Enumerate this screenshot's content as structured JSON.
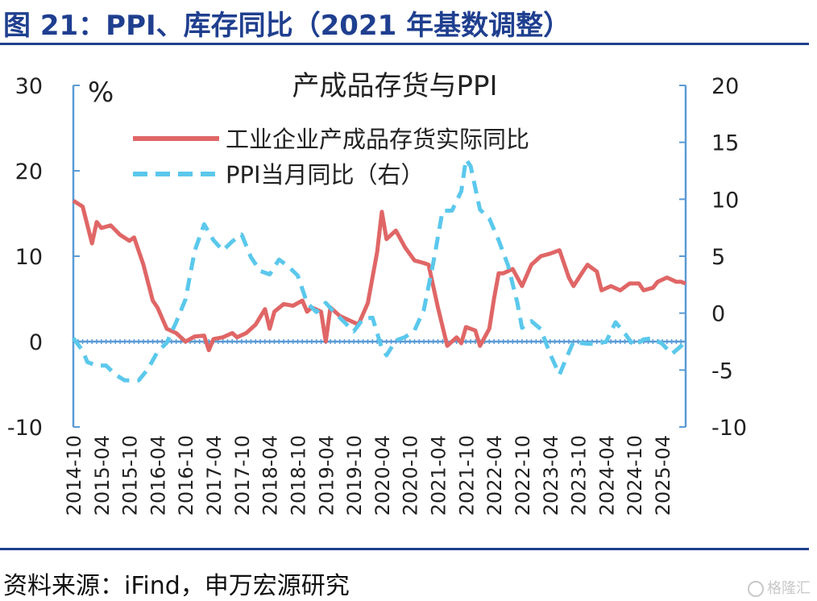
{
  "figure": {
    "title": "图 21：PPI、库存同比（2021 年基数调整）",
    "source": "资料来源：iFind，申万宏源研究",
    "watermark": "格隆汇"
  },
  "colors": {
    "title": "#1f3f8f",
    "inventory_line": "#e06666",
    "ppi_line": "#5bc8ec",
    "axis": "#5b9bd5"
  },
  "chart_data": {
    "type": "line",
    "title": "产成品存货与PPI",
    "left_unit": "%",
    "y_left": {
      "min": -10,
      "max": 30,
      "ticks": [
        -10,
        0,
        10,
        20,
        30
      ]
    },
    "y_right": {
      "min": -10,
      "max": 20,
      "ticks": [
        -10,
        -5,
        0,
        5,
        10,
        15,
        20
      ]
    },
    "x_tick_labels": [
      "2014-10",
      "2015-04",
      "2015-10",
      "2016-04",
      "2016-10",
      "2017-04",
      "2017-10",
      "2018-04",
      "2018-10",
      "2019-04",
      "2019-10",
      "2020-04",
      "2020-10",
      "2021-04",
      "2021-10",
      "2022-04",
      "2022-10",
      "2023-04",
      "2023-10",
      "2024-04",
      "2024-10",
      "2025-04"
    ],
    "legend": {
      "placement": "top-center"
    },
    "series": [
      {
        "name": "工业企业产成品存货实际同比",
        "axis": "left",
        "style": "solid",
        "points": [
          [
            "2014-10",
            16.5
          ],
          [
            "2014-12",
            15.8
          ],
          [
            "2015-02",
            11.5
          ],
          [
            "2015-03",
            14
          ],
          [
            "2015-04",
            13.3
          ],
          [
            "2015-06",
            13.6
          ],
          [
            "2015-08",
            12.5
          ],
          [
            "2015-10",
            11.8
          ],
          [
            "2015-11",
            12.2
          ],
          [
            "2016-01",
            9
          ],
          [
            "2016-03",
            4.8
          ],
          [
            "2016-04",
            4
          ],
          [
            "2016-06",
            1.5
          ],
          [
            "2016-08",
            1
          ],
          [
            "2016-10",
            0
          ],
          [
            "2016-12",
            0.6
          ],
          [
            "2017-02",
            0.7
          ],
          [
            "2017-03",
            -1
          ],
          [
            "2017-04",
            0.3
          ],
          [
            "2017-06",
            0.5
          ],
          [
            "2017-08",
            1
          ],
          [
            "2017-09",
            0.5
          ],
          [
            "2017-11",
            1
          ],
          [
            "2018-01",
            2
          ],
          [
            "2018-03",
            3.8
          ],
          [
            "2018-04",
            1.5
          ],
          [
            "2018-05",
            3.5
          ],
          [
            "2018-07",
            4.4
          ],
          [
            "2018-09",
            4.2
          ],
          [
            "2018-11",
            4.8
          ],
          [
            "2018-12",
            3.5
          ],
          [
            "2019-01",
            4
          ],
          [
            "2019-03",
            3.5
          ],
          [
            "2019-04",
            0
          ],
          [
            "2019-05",
            4
          ],
          [
            "2019-07",
            3
          ],
          [
            "2019-09",
            2.5
          ],
          [
            "2019-11",
            2
          ],
          [
            "2020-01",
            4.5
          ],
          [
            "2020-03",
            10.5
          ],
          [
            "2020-04",
            15.2
          ],
          [
            "2020-05",
            12
          ],
          [
            "2020-07",
            13
          ],
          [
            "2020-08",
            12
          ],
          [
            "2020-09",
            11
          ],
          [
            "2020-11",
            9.5
          ],
          [
            "2021-01",
            9.2
          ],
          [
            "2021-02",
            9
          ],
          [
            "2021-04",
            4
          ],
          [
            "2021-06",
            -0.5
          ],
          [
            "2021-08",
            0.5
          ],
          [
            "2021-09",
            -0.2
          ],
          [
            "2021-10",
            1.7
          ],
          [
            "2021-12",
            1.3
          ],
          [
            "2022-01",
            -0.5
          ],
          [
            "2022-03",
            1.5
          ],
          [
            "2022-04",
            5
          ],
          [
            "2022-05",
            8
          ],
          [
            "2022-06",
            8
          ],
          [
            "2022-08",
            8.5
          ],
          [
            "2022-10",
            6.5
          ],
          [
            "2022-12",
            9
          ],
          [
            "2023-02",
            10
          ],
          [
            "2023-04",
            10.3
          ],
          [
            "2023-06",
            10.7
          ],
          [
            "2023-08",
            7.5
          ],
          [
            "2023-09",
            6.5
          ],
          [
            "2023-11",
            8.2
          ],
          [
            "2023-12",
            9
          ],
          [
            "2024-02",
            8.2
          ],
          [
            "2024-03",
            6
          ],
          [
            "2024-05",
            6.5
          ],
          [
            "2024-07",
            6
          ],
          [
            "2024-09",
            6.8
          ],
          [
            "2024-11",
            6.8
          ],
          [
            "2024-12",
            6
          ],
          [
            "2025-02",
            6.3
          ],
          [
            "2025-03",
            7
          ],
          [
            "2025-05",
            7.5
          ],
          [
            "2025-07",
            7
          ],
          [
            "2025-08",
            7
          ],
          [
            "2025-09",
            6.8
          ]
        ]
      },
      {
        "name": "PPI当月同比（右）",
        "axis": "right",
        "style": "dashed",
        "points": [
          [
            "2014-10",
            -2.2
          ],
          [
            "2014-12",
            -3.3
          ],
          [
            "2015-01",
            -4.3
          ],
          [
            "2015-03",
            -4.6
          ],
          [
            "2015-05",
            -4.6
          ],
          [
            "2015-07",
            -5.4
          ],
          [
            "2015-09",
            -5.9
          ],
          [
            "2015-12",
            -5.9
          ],
          [
            "2016-02",
            -4.9
          ],
          [
            "2016-04",
            -3.4
          ],
          [
            "2016-06",
            -2.6
          ],
          [
            "2016-08",
            -0.8
          ],
          [
            "2016-10",
            1.2
          ],
          [
            "2016-12",
            5.5
          ],
          [
            "2017-02",
            7.8
          ],
          [
            "2017-04",
            6.4
          ],
          [
            "2017-06",
            5.5
          ],
          [
            "2017-08",
            6.3
          ],
          [
            "2017-10",
            6.9
          ],
          [
            "2017-12",
            4.9
          ],
          [
            "2018-02",
            3.7
          ],
          [
            "2018-04",
            3.4
          ],
          [
            "2018-06",
            4.7
          ],
          [
            "2018-08",
            4.1
          ],
          [
            "2018-10",
            3.3
          ],
          [
            "2018-12",
            0.9
          ],
          [
            "2019-02",
            0.1
          ],
          [
            "2019-04",
            0.9
          ],
          [
            "2019-06",
            0
          ],
          [
            "2019-08",
            -0.8
          ],
          [
            "2019-10",
            -1.6
          ],
          [
            "2019-12",
            -0.5
          ],
          [
            "2020-02",
            -0.4
          ],
          [
            "2020-04",
            -3.1
          ],
          [
            "2020-05",
            -3.7
          ],
          [
            "2020-07",
            -2.4
          ],
          [
            "2020-09",
            -2.1
          ],
          [
            "2020-11",
            -1.5
          ],
          [
            "2021-01",
            0.3
          ],
          [
            "2021-03",
            4.4
          ],
          [
            "2021-05",
            9
          ],
          [
            "2021-07",
            9
          ],
          [
            "2021-09",
            10.7
          ],
          [
            "2021-10",
            13.5
          ],
          [
            "2021-11",
            12.9
          ],
          [
            "2022-01",
            9.1
          ],
          [
            "2022-03",
            8.3
          ],
          [
            "2022-05",
            6.4
          ],
          [
            "2022-07",
            4.2
          ],
          [
            "2022-09",
            0.9
          ],
          [
            "2022-10",
            -1.3
          ],
          [
            "2022-12",
            -0.7
          ],
          [
            "2023-02",
            -1.4
          ],
          [
            "2023-04",
            -3.6
          ],
          [
            "2023-06",
            -5.4
          ],
          [
            "2023-07",
            -4.4
          ],
          [
            "2023-09",
            -2.5
          ],
          [
            "2023-10",
            -2.6
          ],
          [
            "2023-12",
            -2.7
          ],
          [
            "2024-02",
            -2.7
          ],
          [
            "2024-04",
            -2.5
          ],
          [
            "2024-06",
            -0.8
          ],
          [
            "2024-08",
            -1.8
          ],
          [
            "2024-10",
            -2.9
          ],
          [
            "2024-12",
            -2.3
          ],
          [
            "2025-02",
            -2.2
          ],
          [
            "2025-04",
            -2.7
          ],
          [
            "2025-06",
            -3.6
          ],
          [
            "2025-08",
            -2.9
          ],
          [
            "2025-09",
            -2.3
          ]
        ]
      }
    ]
  }
}
